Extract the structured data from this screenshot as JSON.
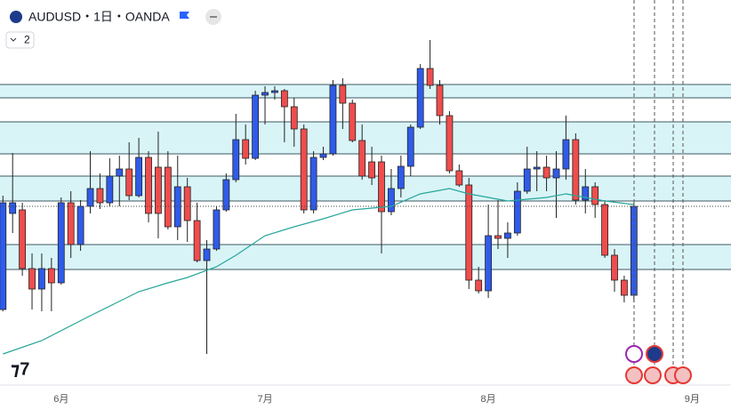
{
  "header": {
    "title": "AUDUSD・1日・OANDA",
    "badge": "2"
  },
  "chart_data": {
    "type": "candlestick",
    "up_color": "#2f5bea",
    "down_color": "#ef4d4d",
    "ma_color": "#26a69a",
    "zone_color": "#d9f4f7",
    "level_color": "#3d5a63",
    "xlim": [
      -0.3,
      75
    ],
    "ylim": [
      0.652,
      0.695
    ],
    "xticks": [
      {
        "value": 6,
        "label": "6月"
      },
      {
        "value": 27,
        "label": "7月"
      },
      {
        "value": 50,
        "label": "8月"
      },
      {
        "value": 71,
        "label": "9月"
      }
    ],
    "open": [
      0.6602,
      0.671,
      0.6714,
      0.6648,
      0.6625,
      0.6648,
      0.6632,
      0.6722,
      0.6675,
      0.6718,
      0.6738,
      0.6722,
      0.6752,
      0.676,
      0.673,
      0.6773,
      0.6762,
      0.6762,
      0.6695,
      0.674,
      0.6702,
      0.6657,
      0.667,
      0.6714,
      0.6748,
      0.6793,
      0.6772,
      0.6843,
      0.6846,
      0.6848,
      0.683,
      0.6805,
      0.6714,
      0.6773,
      0.6777,
      0.6854,
      0.6834,
      0.6792,
      0.6768,
      0.6768,
      0.6712,
      0.6738,
      0.6763,
      0.6807,
      0.6873,
      0.6854,
      0.682,
      0.6758,
      0.6742,
      0.6635,
      0.6623,
      0.6685,
      0.6682,
      0.6688,
      0.6735,
      0.676,
      0.6762,
      0.675,
      0.676,
      0.6793,
      0.6725,
      0.674,
      0.672,
      0.6663,
      0.6635,
      0.6618
    ],
    "high": [
      0.673,
      0.6778,
      0.6722,
      0.6665,
      0.6665,
      0.666,
      0.6728,
      0.6735,
      0.6725,
      0.678,
      0.6755,
      0.6772,
      0.6775,
      0.679,
      0.6795,
      0.678,
      0.6802,
      0.678,
      0.6775,
      0.675,
      0.6722,
      0.668,
      0.6718,
      0.6755,
      0.6822,
      0.681,
      0.6848,
      0.6853,
      0.6853,
      0.685,
      0.684,
      0.681,
      0.678,
      0.6785,
      0.686,
      0.6862,
      0.6838,
      0.681,
      0.6785,
      0.6775,
      0.676,
      0.6775,
      0.681,
      0.6878,
      0.6905,
      0.686,
      0.6825,
      0.6765,
      0.675,
      0.665,
      0.672,
      0.6725,
      0.67,
      0.6745,
      0.6785,
      0.678,
      0.6775,
      0.678,
      0.682,
      0.68,
      0.676,
      0.6745,
      0.6725,
      0.667,
      0.664,
      0.6722
    ],
    "low": [
      0.66,
      0.6688,
      0.664,
      0.6602,
      0.66,
      0.66,
      0.663,
      0.666,
      0.6668,
      0.671,
      0.6715,
      0.6718,
      0.6718,
      0.6725,
      0.6728,
      0.67,
      0.6682,
      0.6692,
      0.668,
      0.6678,
      0.6655,
      0.6552,
      0.6668,
      0.6712,
      0.6745,
      0.6765,
      0.677,
      0.681,
      0.6838,
      0.679,
      0.6785,
      0.671,
      0.671,
      0.677,
      0.6775,
      0.6805,
      0.679,
      0.6748,
      0.6742,
      0.6665,
      0.6708,
      0.6728,
      0.6752,
      0.6805,
      0.685,
      0.681,
      0.6755,
      0.674,
      0.6625,
      0.662,
      0.6615,
      0.667,
      0.666,
      0.6685,
      0.6732,
      0.6735,
      0.6735,
      0.6705,
      0.6748,
      0.672,
      0.671,
      0.6705,
      0.666,
      0.6622,
      0.661,
      0.661
    ],
    "close": [
      0.6722,
      0.6722,
      0.6648,
      0.6625,
      0.6648,
      0.6632,
      0.6722,
      0.6675,
      0.6718,
      0.6738,
      0.6722,
      0.6752,
      0.676,
      0.673,
      0.6773,
      0.671,
      0.671,
      0.6695,
      0.674,
      0.6702,
      0.6657,
      0.667,
      0.6714,
      0.6748,
      0.6793,
      0.6772,
      0.6843,
      0.6846,
      0.6848,
      0.683,
      0.6805,
      0.6714,
      0.6773,
      0.6777,
      0.6854,
      0.6834,
      0.6792,
      0.6752,
      0.675,
      0.6712,
      0.6738,
      0.6763,
      0.6807,
      0.6873,
      0.6854,
      0.682,
      0.6758,
      0.6742,
      0.6635,
      0.6623,
      0.6685,
      0.6682,
      0.6688,
      0.6735,
      0.676,
      0.6762,
      0.675,
      0.676,
      0.6793,
      0.6725,
      0.674,
      0.672,
      0.6663,
      0.6635,
      0.6618,
      0.6718
    ],
    "ma": {
      "x": [
        0,
        4,
        9,
        14,
        17,
        19,
        22,
        24,
        27,
        30,
        33,
        36,
        40,
        43,
        46,
        48,
        52,
        56,
        58,
        62,
        65
      ],
      "values": [
        0.6552,
        0.6567,
        0.6595,
        0.6622,
        0.6632,
        0.6638,
        0.665,
        0.6663,
        0.6685,
        0.6695,
        0.6704,
        0.6714,
        0.6718,
        0.6732,
        0.6738,
        0.6732,
        0.6724,
        0.6728,
        0.6732,
        0.6724,
        0.672
      ]
    },
    "zones": [
      [
        0.6855,
        0.684
      ],
      [
        0.6813,
        0.6777
      ],
      [
        0.6752,
        0.6724
      ],
      [
        0.6675,
        0.6647
      ]
    ]
  }
}
